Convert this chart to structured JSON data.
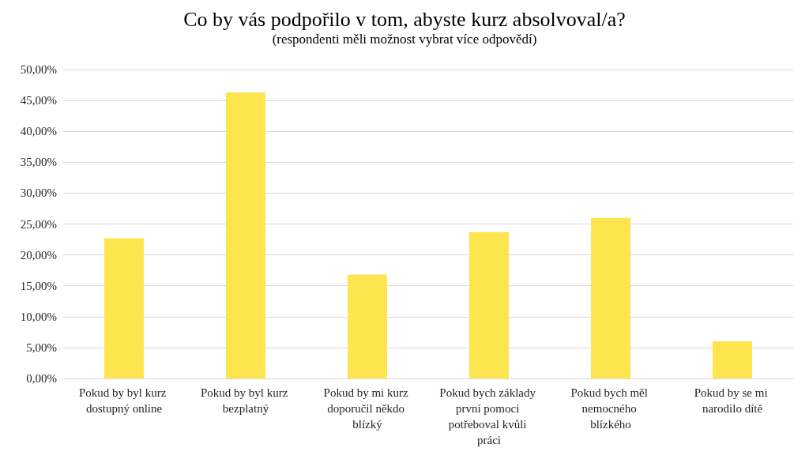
{
  "chart_data": {
    "type": "bar",
    "title": "Co by vás podpořilo v tom, abyste kurz absolvoval/a?",
    "subtitle": "(respondenti měli možnost vybrat více odpovědí)",
    "categories": [
      "Pokud by byl kurz dostupný online",
      "Pokud by byl kurz bezplatný",
      "Pokud by mi kurz doporučil někdo blízký",
      "Pokud bych základy první pomoci potřeboval kvůli práci",
      "Pokud bych měl nemocného blízkého",
      "Pokud by se mi narodilo dítě"
    ],
    "values": [
      22.7,
      46.3,
      16.8,
      23.7,
      26.0,
      6.0
    ],
    "color": "#fee44f",
    "ylim": [
      0,
      50
    ],
    "yticks": [
      {
        "value": 0,
        "label": "0,00%"
      },
      {
        "value": 5,
        "label": "5,00%"
      },
      {
        "value": 10,
        "label": "10,00%"
      },
      {
        "value": 15,
        "label": "15,00%"
      },
      {
        "value": 20,
        "label": "20,00%"
      },
      {
        "value": 25,
        "label": "25,00%"
      },
      {
        "value": 30,
        "label": "30,00%"
      },
      {
        "value": 35,
        "label": "35,00%"
      },
      {
        "value": 40,
        "label": "40,00%"
      },
      {
        "value": 45,
        "label": "45,00%"
      },
      {
        "value": 50,
        "label": "50,00%"
      }
    ],
    "grid": "y"
  }
}
